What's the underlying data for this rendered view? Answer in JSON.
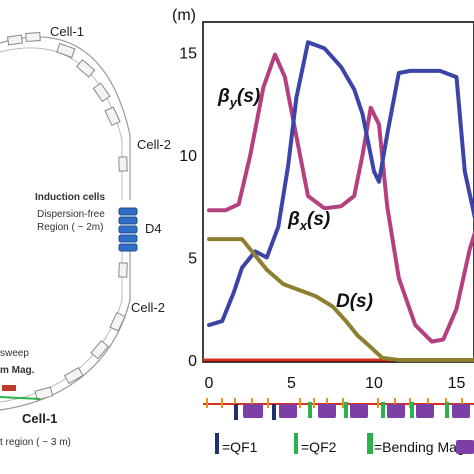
{
  "ring": {
    "cell_top": "Cell-1",
    "cell_right_upper": "Cell-2",
    "induction_title": "Induction cells",
    "dispersion_line1": "Dispersion-free",
    "dispersion_line2": "Region ( ~ 2m)",
    "d4": "D4",
    "cell_right_lower": "Cell-2",
    "cell_bottom": "Cell-1",
    "sweep": "sweep",
    "mag": "m Mag.",
    "region": "t region ( ~ 3 m)"
  },
  "legend": {
    "qf1": "=QF1",
    "qf2": "=QF2",
    "bend": "=Bending Magnet"
  },
  "colors": {
    "beta_y": "#b5407f",
    "beta_x": "#3d44a8",
    "dispersion": "#8c7f30",
    "baseline": "#d6301f",
    "qf1": "#1f2f70",
    "qf2": "#2bb24c",
    "bend": "#7b3fa6",
    "tick_orange": "#e8941a"
  },
  "chart_data": {
    "type": "line",
    "ylabel": "(m)",
    "xlim": [
      0,
      16
    ],
    "ylim": [
      0,
      15
    ],
    "x_ticks": [
      "0",
      "5",
      "10",
      "15"
    ],
    "y_ticks": [
      "0",
      "5",
      "10",
      "15"
    ],
    "series": [
      {
        "name": "βy(s)",
        "label_main": "β",
        "label_sub": "y",
        "label_tail": "(s)",
        "x": [
          0,
          1,
          1.8,
          2.5,
          3.3,
          4.0,
          4.6,
          5.3,
          6.0,
          7.0,
          8.0,
          8.8,
          9.3,
          9.8,
          10.3,
          10.8,
          11.5,
          12.5,
          13.5,
          14.2,
          15.0,
          15.8,
          16.5
        ],
        "y": [
          7.3,
          7.3,
          7.6,
          10.0,
          13.3,
          14.9,
          13.8,
          10.9,
          8.0,
          7.4,
          7.5,
          8.0,
          10.0,
          12.3,
          11.5,
          7.5,
          4.0,
          1.7,
          0.9,
          1.0,
          2.5,
          5.4,
          7.2
        ]
      },
      {
        "name": "βx(s)",
        "label_main": "β",
        "label_sub": "x",
        "label_tail": "(s)",
        "x": [
          0,
          0.8,
          1.5,
          2.0,
          2.8,
          3.5,
          4.2,
          4.8,
          5.3,
          6.0,
          7.0,
          8.0,
          8.8,
          9.3,
          10.0,
          10.3,
          10.8,
          11.5,
          12.2,
          13.0,
          14.0,
          15.0,
          15.5,
          16.5
        ],
        "y": [
          1.7,
          1.9,
          3.3,
          4.5,
          5.3,
          5.0,
          6.5,
          9.5,
          12.8,
          15.5,
          15.2,
          14.3,
          13.2,
          12.0,
          9.2,
          8.7,
          11.0,
          14.0,
          14.1,
          14.1,
          14.1,
          13.8,
          9.2,
          5.5
        ]
      },
      {
        "name": "D(s)",
        "label_main": "D(s)",
        "label_sub": "",
        "label_tail": "",
        "x": [
          0,
          1,
          2,
          2.7,
          3.5,
          4.5,
          5.5,
          6.5,
          7.5,
          8.3,
          9.0,
          9.7,
          10.5,
          11.5,
          12.5,
          13.5,
          14.5,
          15.5,
          16.5
        ],
        "y": [
          5.9,
          5.9,
          5.9,
          5.2,
          4.4,
          3.7,
          3.4,
          3.1,
          2.6,
          1.9,
          1.2,
          0.7,
          0.1,
          0.0,
          0.0,
          0.0,
          0.0,
          0.0,
          0.0
        ]
      }
    ]
  }
}
